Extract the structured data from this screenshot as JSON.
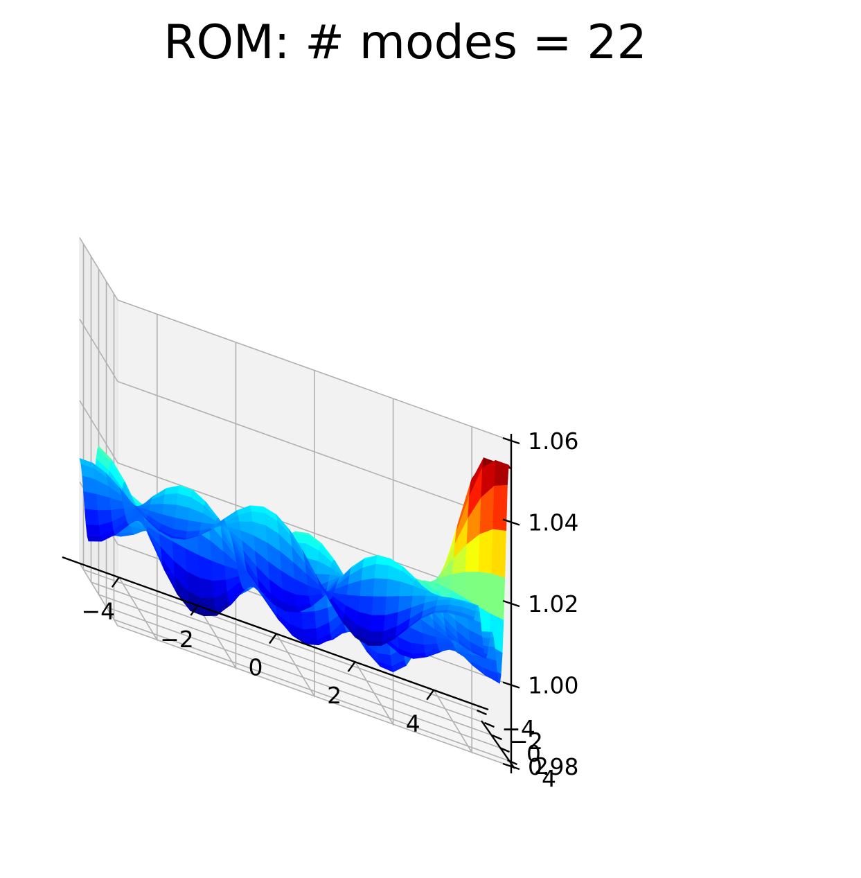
{
  "chart_data": {
    "type": "surface3d",
    "title": "ROM: # modes = 22",
    "xlabel": "",
    "ylabel": "",
    "zlabel": "",
    "x_ticks": [
      -4,
      -2,
      0,
      2,
      4
    ],
    "x_tick_labels": [
      "−4",
      "−2",
      "0",
      "2",
      "4"
    ],
    "y_ticks": [
      -4,
      -2,
      0,
      2,
      4
    ],
    "y_tick_labels": [
      "−4",
      "−2",
      "0",
      "2",
      "4"
    ],
    "z_ticks": [
      0.98,
      1.0,
      1.02,
      1.04,
      1.06
    ],
    "z_tick_labels": [
      "0.98",
      "1.00",
      "1.02",
      "1.04",
      "1.06"
    ],
    "xlim": [
      -5,
      5
    ],
    "ylim": [
      -5,
      5
    ],
    "zlim": [
      0.98,
      1.06
    ],
    "colormap": "jet",
    "grid": true,
    "surface_z_range": [
      0.984,
      1.053
    ],
    "feature_peaks": [
      {
        "x": 5,
        "y": 5,
        "z": 1.053
      },
      {
        "x": -5,
        "y": 3.5,
        "z": 1.035
      },
      {
        "x": 5,
        "y": -3,
        "z": 1.02
      }
    ],
    "feature_minima": [
      {
        "x": 5,
        "y": -5,
        "z": 0.984
      },
      {
        "x": 1.5,
        "y": -3.5,
        "z": 0.99
      }
    ]
  }
}
